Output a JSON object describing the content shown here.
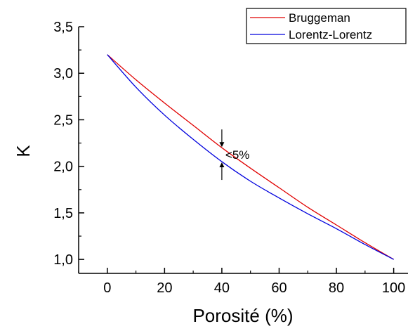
{
  "chart_data": {
    "type": "line",
    "xlabel": "Porosité (%)",
    "ylabel": "K",
    "xlim": [
      -10,
      105
    ],
    "ylim": [
      0.85,
      3.5
    ],
    "x_ticks": [
      0,
      20,
      40,
      60,
      80,
      100
    ],
    "x_tick_labels": [
      "0",
      "20",
      "40",
      "60",
      "80",
      "100"
    ],
    "y_ticks": [
      1.0,
      1.5,
      2.0,
      2.5,
      3.0,
      3.5
    ],
    "y_tick_labels": [
      "1,0",
      "1,5",
      "2,0",
      "2,5",
      "3,0",
      "3,5"
    ],
    "grid": false,
    "legend_position": "top-right",
    "series": [
      {
        "name": "Bruggeman",
        "color": "#e00000",
        "x": [
          0,
          10,
          20,
          30,
          40,
          50,
          60,
          70,
          80,
          90,
          100
        ],
        "y": [
          3.2,
          2.93,
          2.68,
          2.44,
          2.2,
          1.98,
          1.77,
          1.56,
          1.37,
          1.18,
          1.0
        ]
      },
      {
        "name": "Lorentz-Lorentz",
        "color": "#0000dd",
        "x": [
          0,
          10,
          20,
          30,
          40,
          50,
          60,
          70,
          80,
          90,
          100
        ],
        "y": [
          3.2,
          2.85,
          2.55,
          2.29,
          2.05,
          1.84,
          1.66,
          1.49,
          1.33,
          1.16,
          1.0
        ]
      }
    ],
    "annotations": [
      {
        "text": "<5%",
        "x": 40,
        "y_from": 2.05,
        "y_to": 2.2
      }
    ]
  }
}
